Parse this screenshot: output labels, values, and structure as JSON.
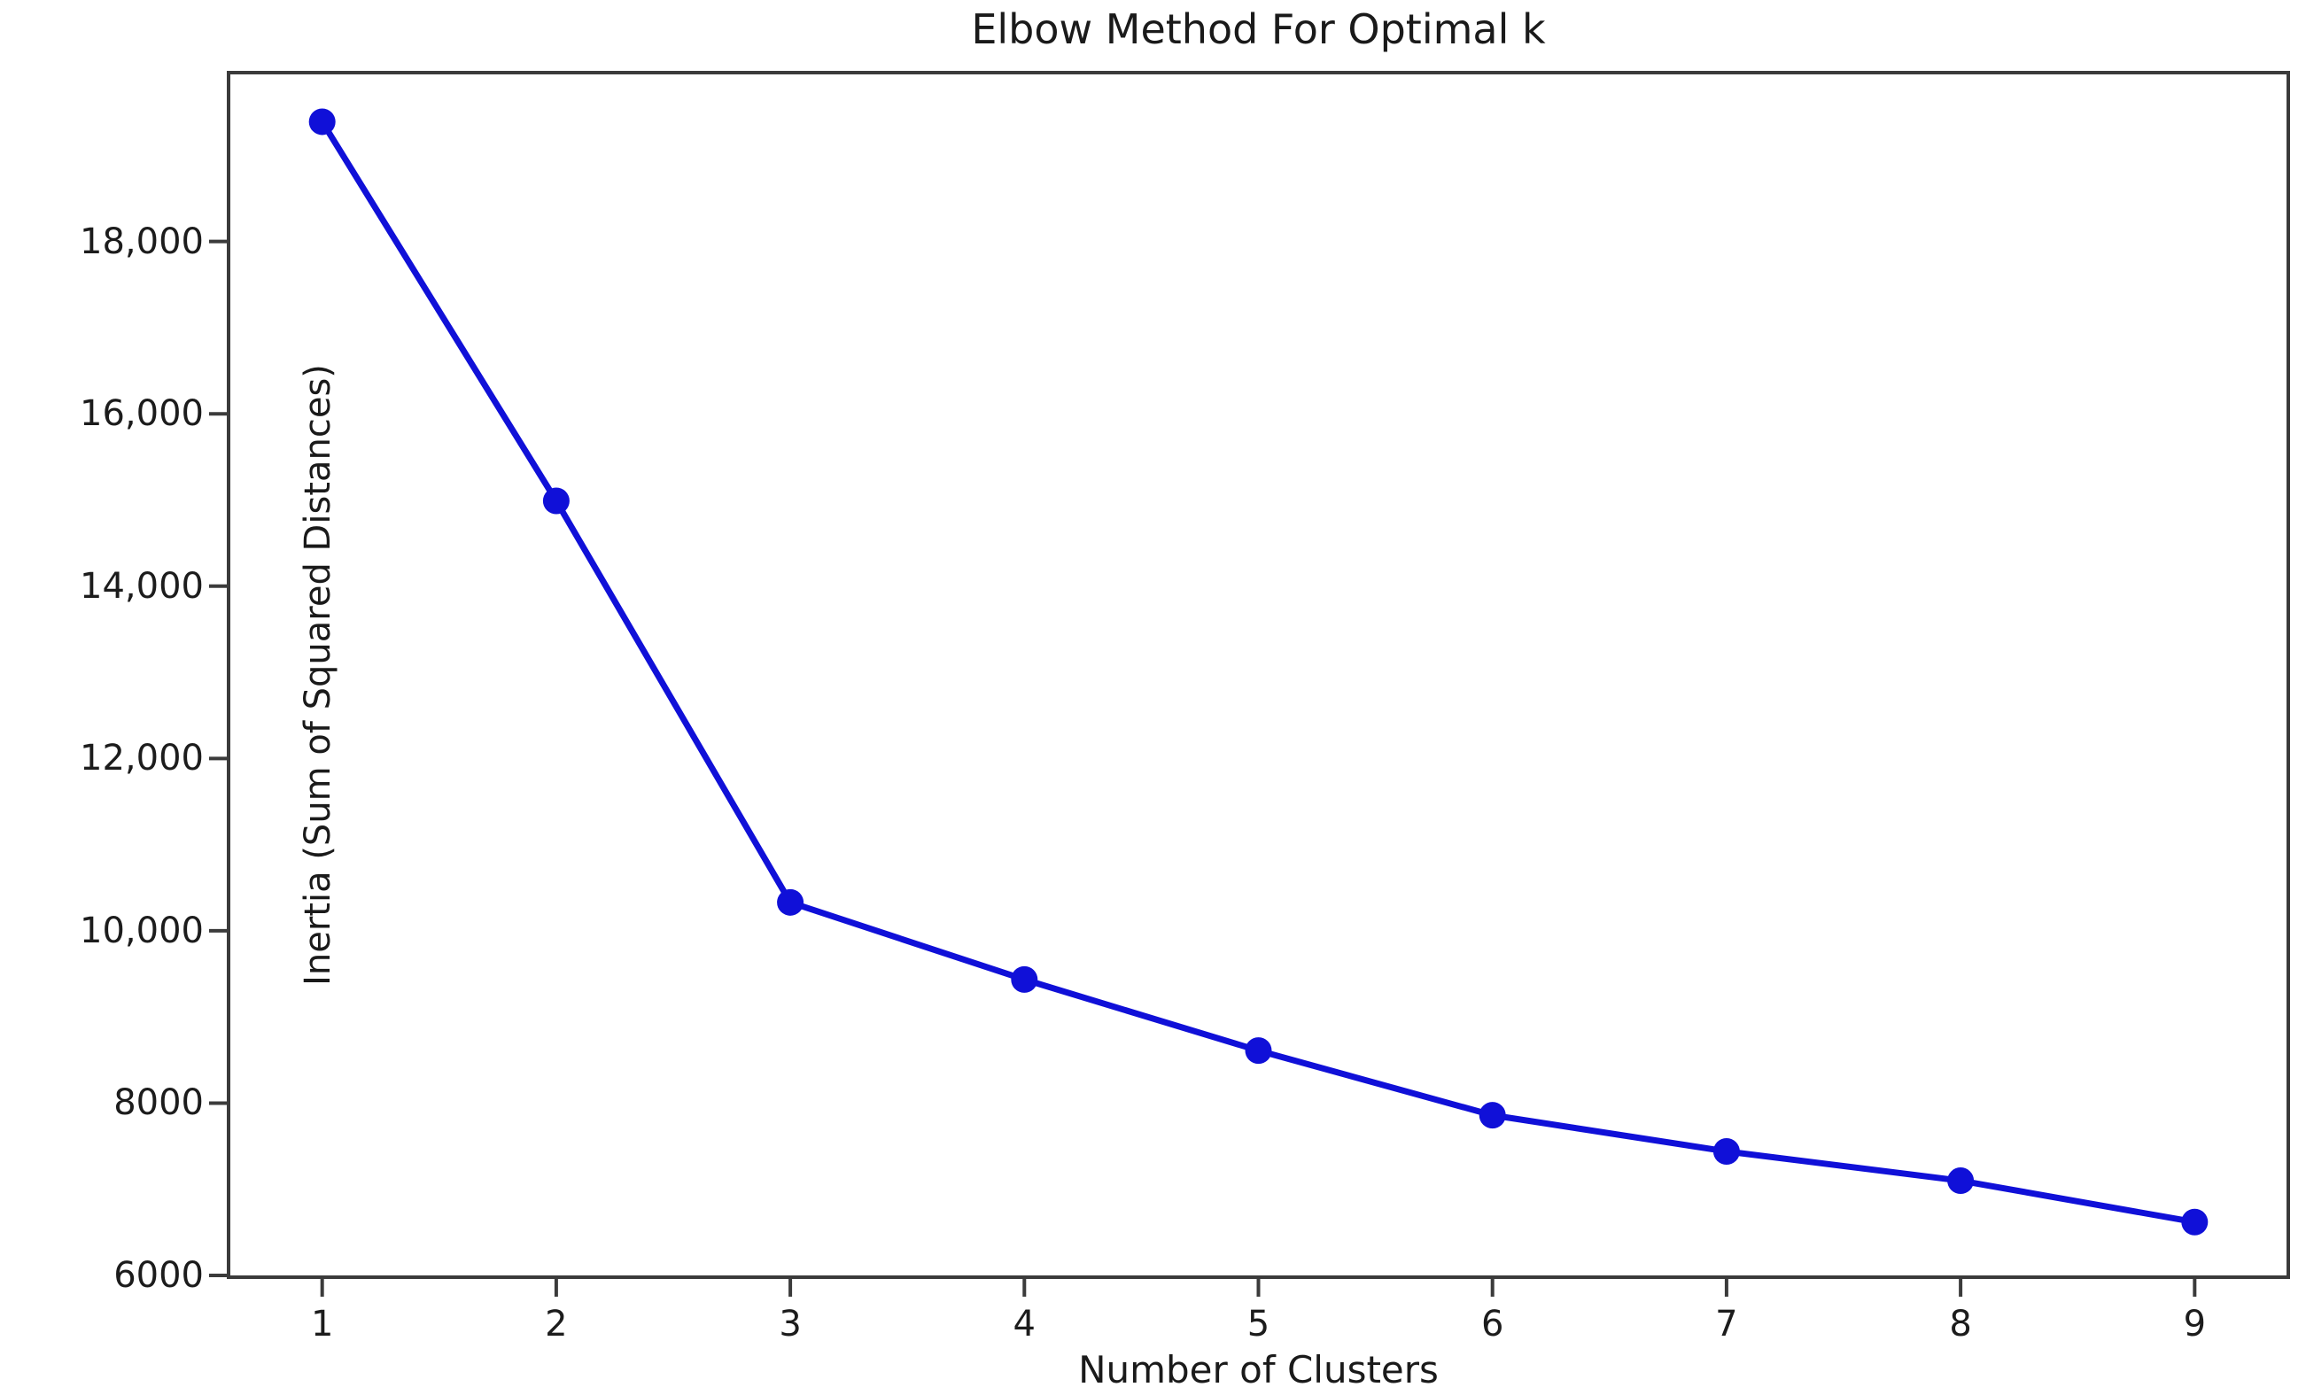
{
  "chart_data": {
    "type": "line",
    "title": "Elbow Method For Optimal k",
    "xlabel": "Number of Clusters",
    "ylabel": "Inertia (Sum of Squared Distances)",
    "series": [
      {
        "name": "inertia",
        "color": "#1010d8",
        "marker": "circle",
        "x": [
          1,
          2,
          3,
          4,
          5,
          6,
          7,
          8,
          9
        ],
        "y": [
          19390,
          14990,
          10330,
          9435,
          8610,
          7860,
          7440,
          7100,
          6620
        ]
      }
    ],
    "xlim": [
      0.6,
      9.4
    ],
    "ylim": [
      5980,
      19960
    ],
    "x_ticks": [
      1,
      2,
      3,
      4,
      5,
      6,
      7,
      8,
      9
    ],
    "x_tick_labels": [
      "1",
      "2",
      "3",
      "4",
      "5",
      "6",
      "7",
      "8",
      "9"
    ],
    "y_ticks": [
      6000,
      8000,
      10000,
      12000,
      14000,
      16000,
      18000
    ],
    "y_tick_labels": [
      "6000",
      "8000",
      "10,000",
      "12,000",
      "14,000",
      "16,000",
      "18,000"
    ],
    "grid": false,
    "legend": "none",
    "spine_color": "#3b3b3b",
    "text_color": "#1a1a1a"
  }
}
